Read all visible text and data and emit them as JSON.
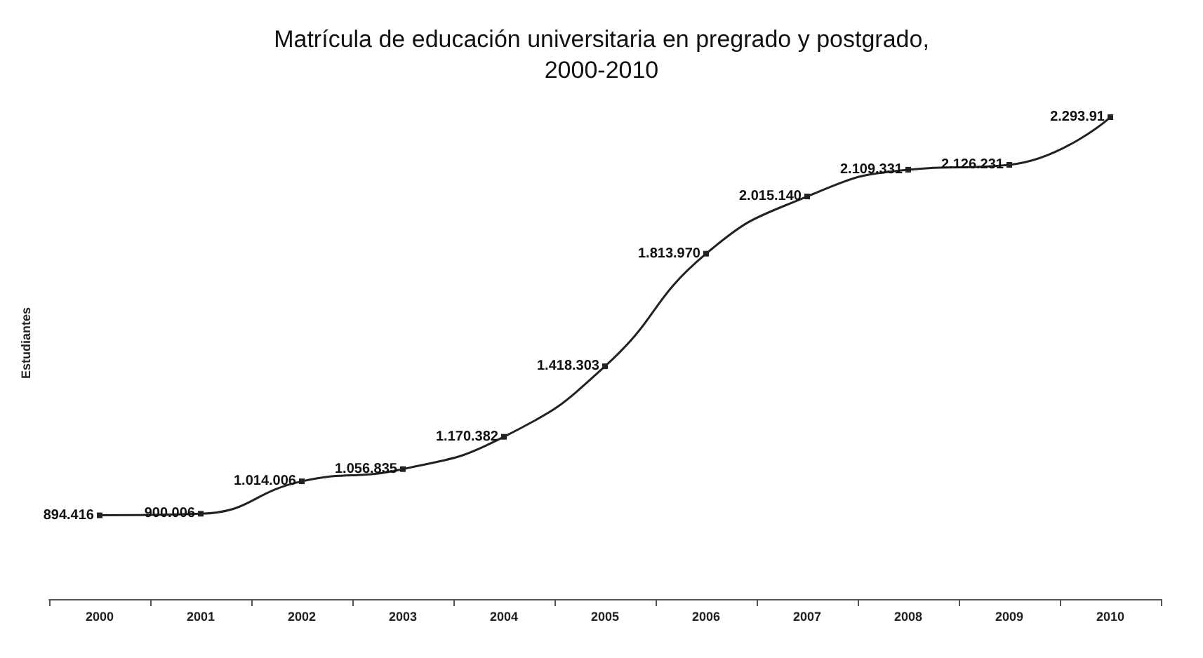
{
  "chart_data": {
    "type": "line",
    "title": "Matrícula de educación universitaria en pregrado y postgrado,\n2000-2010",
    "ylabel": "Estudiantes",
    "categories": [
      "2000",
      "2001",
      "2002",
      "2003",
      "2004",
      "2005",
      "2006",
      "2007",
      "2008",
      "2009",
      "2010"
    ],
    "series": [
      {
        "color": "#222222",
        "values": [
          894416,
          900006,
          1014006,
          1056835,
          1170382,
          1418303,
          1813970,
          2015140,
          2109331,
          2126231,
          2293910
        ],
        "value_labels": [
          "894.416",
          "900.006",
          "1.014.006",
          "1.056.835",
          "1.170.382",
          "1.418.303",
          "1.813.970",
          "2.015.140",
          "2.109.331",
          "2.126.231",
          "2.293.91"
        ]
      }
    ],
    "marker": "square",
    "line_style": "solid",
    "grid": false,
    "tick_labels": "x"
  }
}
